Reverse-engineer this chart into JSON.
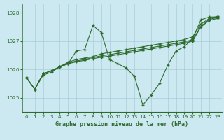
{
  "title": "Graphe pression niveau de la mer (hPa)",
  "bg_color": "#cce8f0",
  "grid_color": "#a8cdd8",
  "line_color": "#2d6b2d",
  "xlim": [
    -0.5,
    23.5
  ],
  "ylim": [
    1024.5,
    1028.3
  ],
  "yticks": [
    1025,
    1026,
    1027,
    1028
  ],
  "xticks": [
    0,
    1,
    2,
    3,
    4,
    5,
    6,
    7,
    8,
    9,
    10,
    11,
    12,
    13,
    14,
    15,
    16,
    17,
    18,
    19,
    20,
    21,
    22,
    23
  ],
  "series": [
    [
      1025.7,
      1025.3,
      1025.8,
      1025.9,
      1026.1,
      1026.2,
      1026.65,
      1026.7,
      1027.55,
      1027.3,
      1026.35,
      1026.2,
      1026.05,
      1025.75,
      1024.75,
      1025.1,
      1025.5,
      1026.15,
      1026.65,
      1026.8,
      1027.1,
      1027.75,
      1027.85,
      1027.85
    ],
    [
      1025.7,
      1025.3,
      1025.85,
      1025.95,
      1026.1,
      1026.25,
      1026.35,
      1026.4,
      1026.45,
      1026.55,
      1026.6,
      1026.65,
      1026.7,
      1026.75,
      1026.8,
      1026.85,
      1026.9,
      1026.95,
      1027.0,
      1027.05,
      1027.15,
      1027.6,
      1027.8,
      1027.87
    ],
    [
      1025.7,
      1025.3,
      1025.85,
      1025.95,
      1026.1,
      1026.22,
      1026.3,
      1026.35,
      1026.42,
      1026.48,
      1026.52,
      1026.57,
      1026.62,
      1026.67,
      1026.72,
      1026.77,
      1026.82,
      1026.87,
      1026.92,
      1026.97,
      1027.05,
      1027.52,
      1027.77,
      1027.83
    ],
    [
      1025.7,
      1025.3,
      1025.85,
      1025.95,
      1026.08,
      1026.2,
      1026.27,
      1026.32,
      1026.38,
      1026.43,
      1026.47,
      1026.52,
      1026.57,
      1026.62,
      1026.67,
      1026.72,
      1026.77,
      1026.82,
      1026.87,
      1026.92,
      1027.0,
      1027.5,
      1027.73,
      1027.8
    ]
  ]
}
